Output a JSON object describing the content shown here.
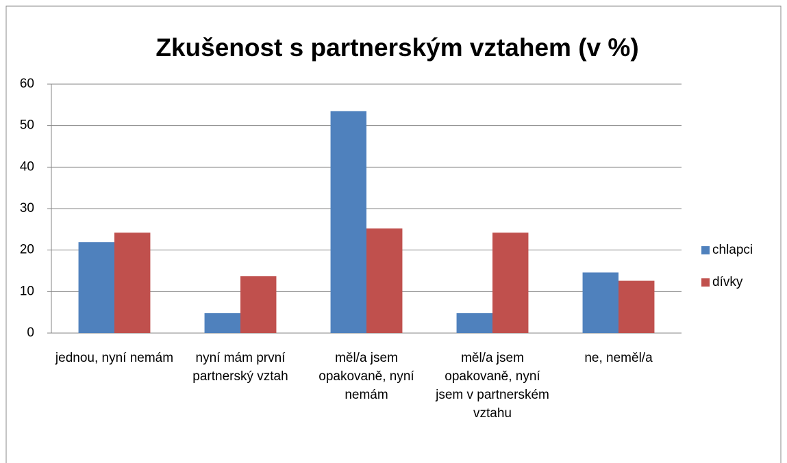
{
  "chart_data": {
    "type": "bar",
    "title": "Zkušenost s partnerským vztahem (v %)",
    "categories": [
      "jednou, nyní nemám",
      "nyní mám první partnerský vztah",
      "měl/a jsem opakovaně, nyní nemám",
      "měl/a jsem opakovaně, nyní jsem v partnerském vztahu",
      "ne, neměl/a"
    ],
    "series": [
      {
        "name": "chlapci",
        "color": "#4f81bd",
        "values": [
          21.9,
          4.8,
          53.5,
          4.8,
          14.6
        ]
      },
      {
        "name": "dívky",
        "color": "#c0504d",
        "values": [
          24.2,
          13.7,
          25.2,
          24.2,
          12.6
        ]
      }
    ],
    "ylim": [
      0,
      60
    ],
    "yticks": [
      0,
      10,
      20,
      30,
      40,
      50,
      60
    ],
    "grid": true,
    "legend": "right"
  }
}
